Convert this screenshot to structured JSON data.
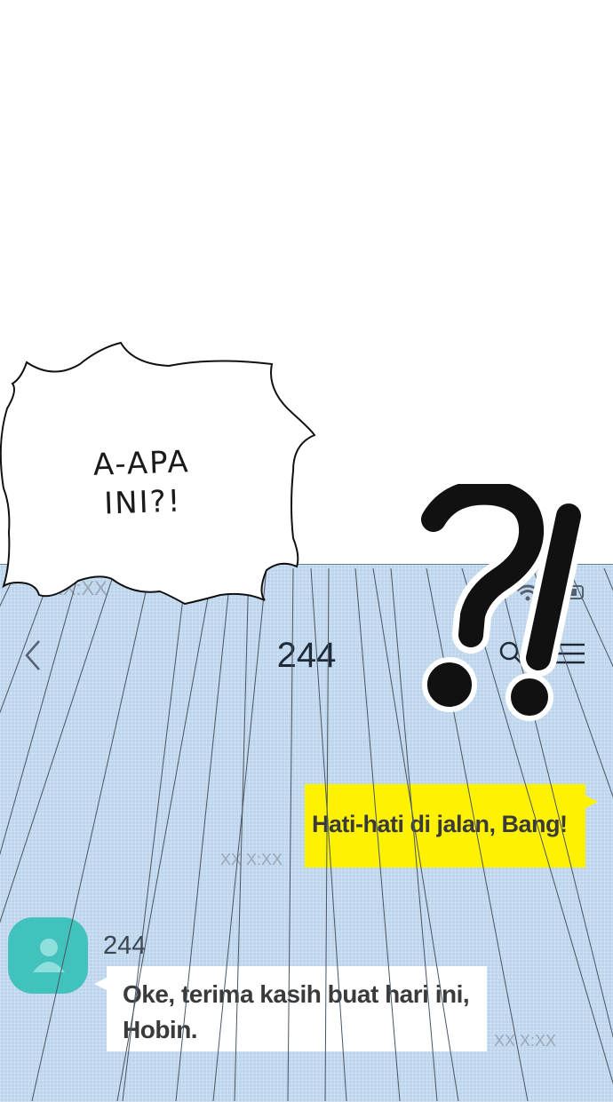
{
  "status_bar": {
    "time": "XX:XX",
    "signal_icon": "signal-icon",
    "wifi_icon": "wifi-icon",
    "battery_icon": "battery-icon"
  },
  "header": {
    "back_icon": "chevron-left-icon",
    "title": "244",
    "search_icon": "search-icon",
    "menu_icon": "menu-icon"
  },
  "messages": [
    {
      "direction": "sent",
      "text": "Hati-hati di jalan, Bang!",
      "time": "XX X:XX",
      "color": "#fff200"
    },
    {
      "direction": "received",
      "sender": "244",
      "avatar_icon": "person-icon",
      "avatar_color": "#42c2bd",
      "text_line1": "Oke, terima kasih buat hari ini,",
      "text_line2": "Hobin.",
      "time": "XX X:XX"
    }
  ],
  "overlay": {
    "speech_line1": "A-APA",
    "speech_line2": "INI?!",
    "sfx": "?!"
  },
  "colors": {
    "chat_background": "#bcd4ec",
    "sent_bubble": "#fff200",
    "received_bubble": "#ffffff"
  }
}
